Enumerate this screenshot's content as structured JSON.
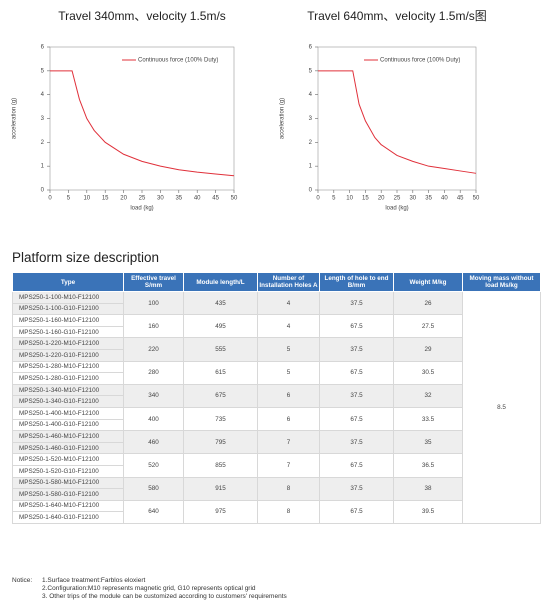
{
  "chart_data": [
    {
      "type": "line",
      "title": "Travel 340mm、velocity 1.5m/s",
      "x_label": "load (kg)",
      "y_label": "acceleration (g)",
      "xlim": [
        0,
        50
      ],
      "ylim": [
        0,
        6
      ],
      "xticks": [
        0,
        5,
        10,
        15,
        20,
        25,
        30,
        35,
        40,
        45,
        50
      ],
      "yticks": [
        0,
        1,
        2,
        3,
        4,
        5,
        6
      ],
      "legend": "upper right",
      "x": [
        0,
        6,
        8,
        10,
        12,
        15,
        20,
        25,
        30,
        35,
        40,
        45,
        50
      ],
      "series": [
        {
          "name": "Continuous force (100% Duty)",
          "color": "#e0303a",
          "values": [
            5,
            5,
            3.8,
            3,
            2.5,
            2,
            1.5,
            1.2,
            1,
            0.85,
            0.75,
            0.67,
            0.6
          ]
        }
      ]
    },
    {
      "type": "line",
      "title": "Travel 640mm、velocity 1.5m/s图",
      "x_label": "load (kg)",
      "y_label": "acceleration (g)",
      "xlim": [
        0,
        50
      ],
      "ylim": [
        0,
        6
      ],
      "xticks": [
        0,
        5,
        10,
        15,
        20,
        25,
        30,
        35,
        40,
        45,
        50
      ],
      "yticks": [
        0,
        1,
        2,
        3,
        4,
        5,
        6
      ],
      "legend": "upper right",
      "x": [
        0,
        11,
        13,
        15,
        18,
        20,
        25,
        30,
        35,
        40,
        45,
        50
      ],
      "series": [
        {
          "name": "Continuous force (100% Duty)",
          "color": "#e0303a",
          "values": [
            5,
            5,
            3.6,
            2.9,
            2.2,
            1.9,
            1.45,
            1.2,
            1,
            0.9,
            0.8,
            0.7
          ]
        }
      ]
    }
  ],
  "section_title": "Platform size description",
  "table": {
    "columns": [
      "Type",
      "Effective travel S/mm",
      "Module length/L",
      "Number of Installation Holes A",
      "Length of hole to end B/mm",
      "Weight M/kg",
      "Moving mass without load Ms/kg"
    ],
    "moving_mass": 8.5,
    "rows": [
      {
        "types": [
          "MPS250-1-100-M10-F12100",
          "MPS250-1-100-G10-F12100"
        ],
        "travel": 100,
        "length": 435,
        "holes": 4,
        "b": 37.5,
        "weight": 26
      },
      {
        "types": [
          "MPS250-1-160-M10-F12100",
          "MPS250-1-160-G10-F12100"
        ],
        "travel": 160,
        "length": 495,
        "holes": 4,
        "b": 67.5,
        "weight": 27.5
      },
      {
        "types": [
          "MPS250-1-220-M10-F12100",
          "MPS250-1-220-G10-F12100"
        ],
        "travel": 220,
        "length": 555,
        "holes": 5,
        "b": 37.5,
        "weight": 29
      },
      {
        "types": [
          "MPS250-1-280-M10-F12100",
          "MPS250-1-280-G10-F12100"
        ],
        "travel": 280,
        "length": 615,
        "holes": 5,
        "b": 67.5,
        "weight": 30.5
      },
      {
        "types": [
          "MPS250-1-340-M10-F12100",
          "MPS250-1-340-G10-F12100"
        ],
        "travel": 340,
        "length": 675,
        "holes": 6,
        "b": 37.5,
        "weight": 32
      },
      {
        "types": [
          "MPS250-1-400-M10-F12100",
          "MPS250-1-400-G10-F12100"
        ],
        "travel": 400,
        "length": 735,
        "holes": 6,
        "b": 67.5,
        "weight": 33.5
      },
      {
        "types": [
          "MPS250-1-460-M10-F12100",
          "MPS250-1-460-G10-F12100"
        ],
        "travel": 460,
        "length": 795,
        "holes": 7,
        "b": 37.5,
        "weight": 35
      },
      {
        "types": [
          "MPS250-1-520-M10-F12100",
          "MPS250-1-520-G10-F12100"
        ],
        "travel": 520,
        "length": 855,
        "holes": 7,
        "b": 67.5,
        "weight": 36.5
      },
      {
        "types": [
          "MPS250-1-580-M10-F12100",
          "MPS250-1-580-G10-F12100"
        ],
        "travel": 580,
        "length": 915,
        "holes": 8,
        "b": 37.5,
        "weight": 38
      },
      {
        "types": [
          "MPS250-1-640-M10-F12100",
          "MPS250-1-640-G10-F12100"
        ],
        "travel": 640,
        "length": 975,
        "holes": 8,
        "b": 67.5,
        "weight": 39.5
      }
    ]
  },
  "notice": {
    "label": "Notice:",
    "lines": [
      "1.Surface treatment:Farblos eloxiert",
      "2.Configuration:M10 represents magnetic grid, G10 represents optical grid",
      "3. Other trips of the module can be customized according to customers' requirements"
    ]
  }
}
